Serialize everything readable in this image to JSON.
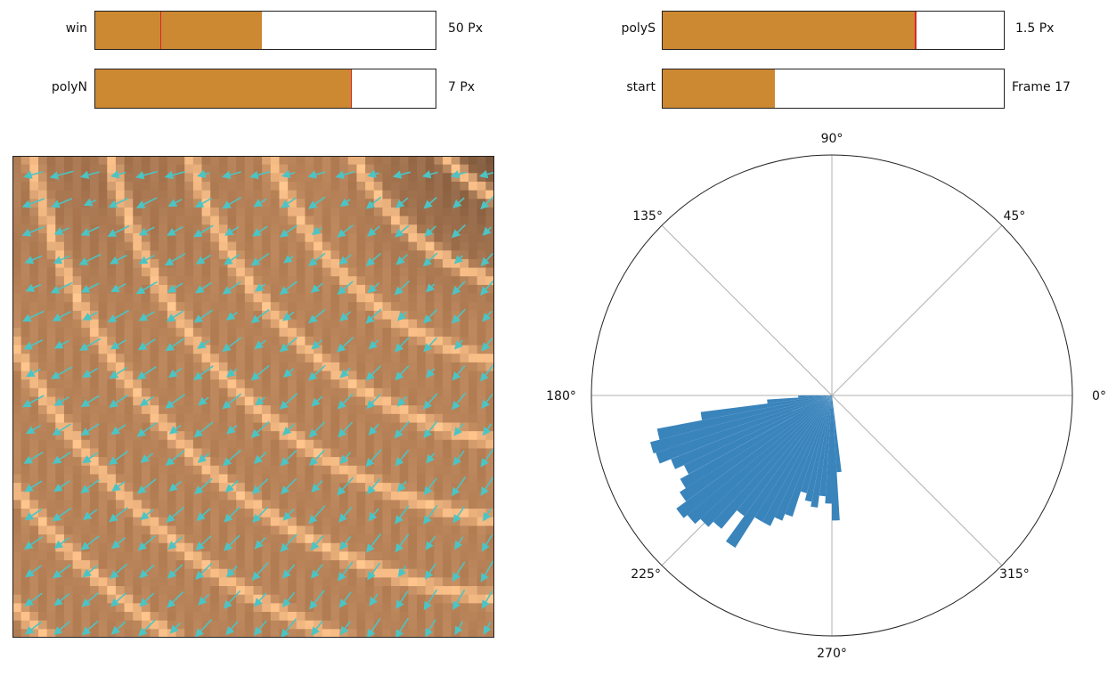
{
  "colors": {
    "slider_fill": "#cd8832",
    "slider_handle": "#d62728",
    "quiver": "#4cc4c4",
    "rose_bar": "#3a84bc",
    "rose_grid": "#b0b0b0",
    "field_dark": "#7a563c",
    "field_mid": "#b88258",
    "field_light": "#fdc28a"
  },
  "sliders": [
    {
      "name": "win",
      "label": "win",
      "value_text": "50 Px",
      "fill_fraction": 0.49,
      "handle_fraction": 0.19
    },
    {
      "name": "polyN",
      "label": "polyN",
      "value_text": "7 Px",
      "fill_fraction": 0.75,
      "handle_fraction": 0.75
    },
    {
      "name": "polyS",
      "label": "polyS",
      "value_text": "1.5 Px",
      "fill_fraction": 0.74,
      "handle_fraction": 0.74
    },
    {
      "name": "start",
      "label": "start",
      "value_text": "Frame 17",
      "fill_fraction": 0.33,
      "handle_fraction": null
    }
  ],
  "chart_data": [
    {
      "type": "heatmap",
      "description_note": "",
      "grid_size": [
        56,
        56
      ],
      "overlay": "quiver",
      "quiver_grid": [
        17,
        17
      ],
      "dominant_direction_deg": 230,
      "title": "",
      "xlabel": "",
      "ylabel": ""
    },
    {
      "type": "bar",
      "projection": "polar",
      "title": "",
      "angle_tick_labels": [
        "0°",
        "45°",
        "90°",
        "135°",
        "180°",
        "225°",
        "270°",
        "315°"
      ],
      "angle_tick_values_deg": [
        0,
        45,
        90,
        135,
        180,
        225,
        270,
        315
      ],
      "radial_tick_labels": [],
      "rmax": 1.0,
      "bin_width_deg": 3.6,
      "x": [
        180,
        183.6,
        187.2,
        190.8,
        194.4,
        198,
        201.6,
        205.2,
        208.8,
        212.4,
        216,
        219.6,
        223.2,
        226.8,
        230.4,
        234,
        237.6,
        241.2,
        244.8,
        248.4,
        252,
        255.6,
        259.2,
        262.8,
        266.4,
        270,
        273.6
      ],
      "values": [
        0.14,
        0.27,
        0.55,
        0.74,
        0.78,
        0.77,
        0.72,
        0.68,
        0.72,
        0.75,
        0.8,
        0.78,
        0.75,
        0.72,
        0.62,
        0.75,
        0.6,
        0.6,
        0.56,
        0.53,
        0.42,
        0.45,
        0.47,
        0.42,
        0.45,
        0.52,
        0.32
      ]
    }
  ]
}
